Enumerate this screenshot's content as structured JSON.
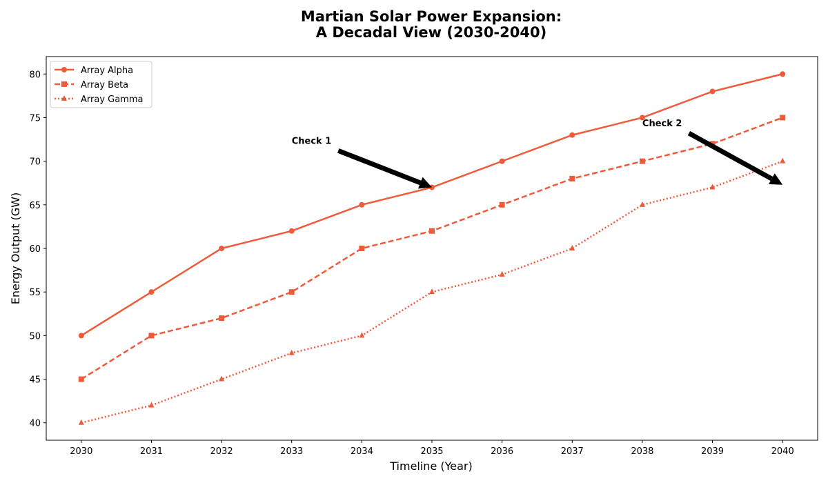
{
  "chart_data": {
    "type": "line",
    "title_line1": "Martian Solar Power Expansion:",
    "title_line2": "A Decadal View (2030-2040)",
    "xlabel": "Timeline (Year)",
    "ylabel": "Energy Output (GW)",
    "x": [
      2030,
      2031,
      2032,
      2033,
      2034,
      2035,
      2036,
      2037,
      2038,
      2039,
      2040
    ],
    "xlim": [
      2029.5,
      2040.5
    ],
    "ylim": [
      38,
      82
    ],
    "yticks": [
      40,
      45,
      50,
      55,
      60,
      65,
      70,
      75,
      80
    ],
    "grid": false,
    "legend_position": "upper-left",
    "series": [
      {
        "name": "Array Alpha",
        "values": [
          50,
          55,
          60,
          62,
          65,
          67,
          70,
          73,
          75,
          78,
          80
        ],
        "color": "#f05a3a",
        "style": "solid",
        "marker": "circle"
      },
      {
        "name": "Array Beta",
        "values": [
          45,
          50,
          52,
          55,
          60,
          62,
          65,
          68,
          70,
          72,
          75
        ],
        "color": "#f05a3a",
        "style": "dashed",
        "marker": "square"
      },
      {
        "name": "Array Gamma",
        "values": [
          40,
          42,
          45,
          48,
          50,
          55,
          57,
          60,
          65,
          67,
          70
        ],
        "color": "#f05a3a",
        "style": "dotted",
        "marker": "triangle"
      }
    ],
    "annotations": [
      {
        "text": "Check 1",
        "text_x": 2033,
        "text_y": 72,
        "point_x": 2035,
        "point_y": 67
      },
      {
        "text": "Check 2",
        "text_x": 2038,
        "text_y": 74,
        "point_x": 2040,
        "point_y": 67.3
      }
    ]
  }
}
